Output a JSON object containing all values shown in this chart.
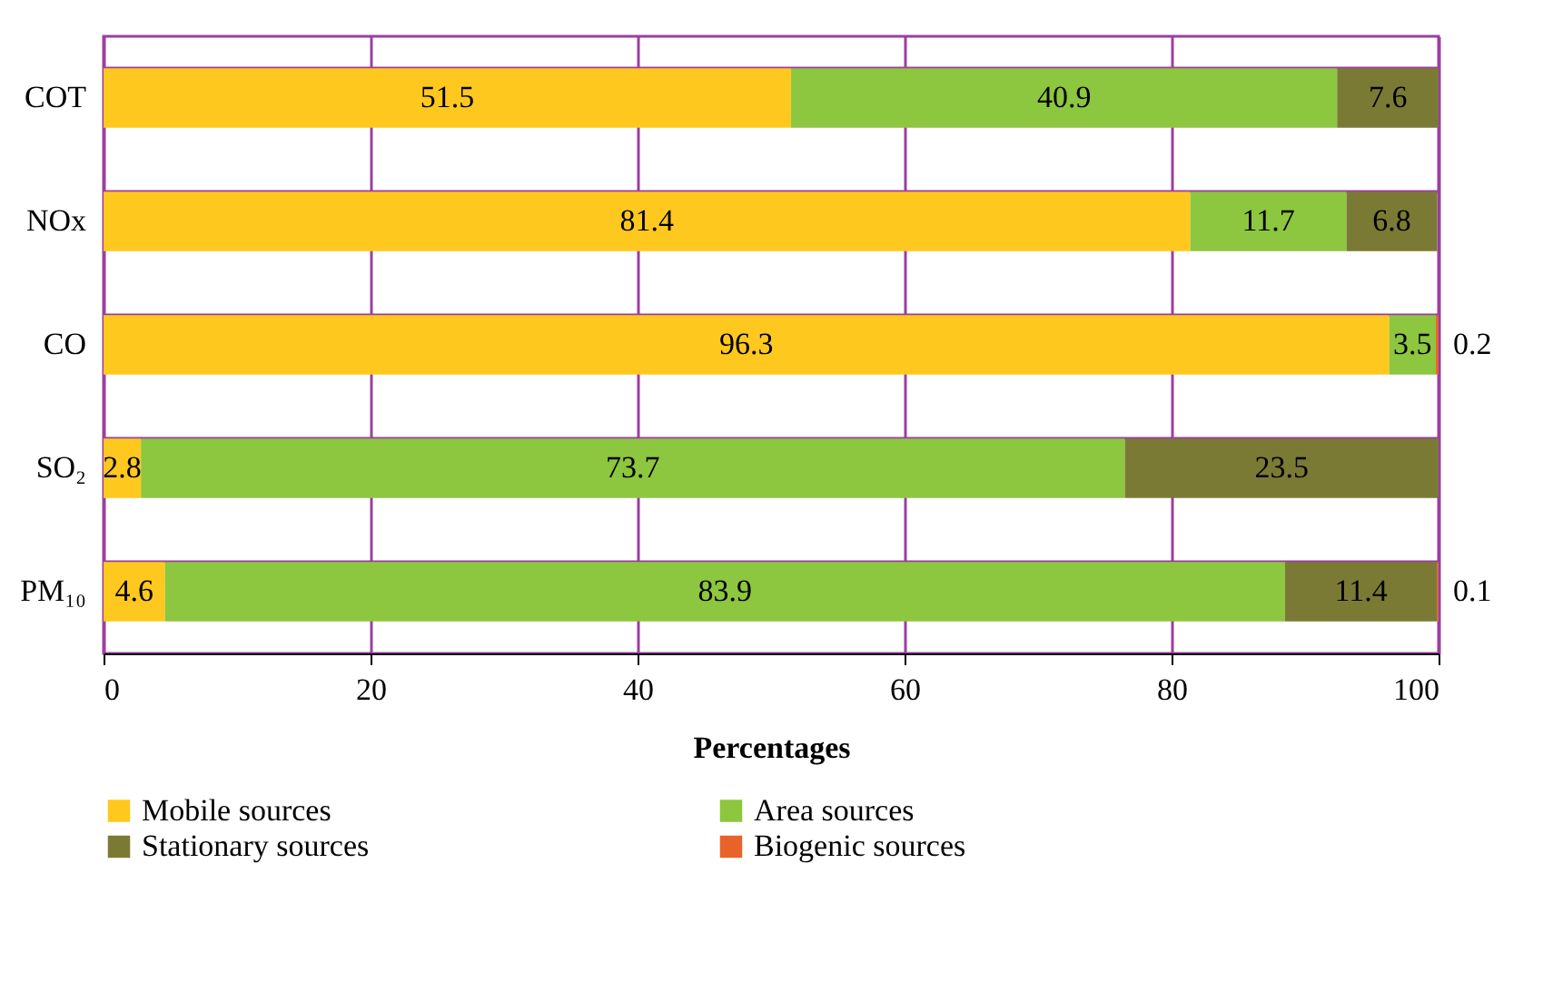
{
  "chart_data": {
    "type": "bar",
    "orientation": "horizontal",
    "stacked": true,
    "xlabel": "Percentages",
    "categories": [
      "COT",
      "NOx",
      "CO",
      "SO₂",
      "PM₁₀"
    ],
    "series": [
      {
        "name": "Mobile sources",
        "color": "#ffc81e",
        "values": [
          51.5,
          81.4,
          96.3,
          2.8,
          4.6
        ],
        "value_labels": [
          "51.5",
          "81.4",
          "96.3",
          "2.8",
          "4.6"
        ]
      },
      {
        "name": "Area sources",
        "color": "#8dc63f",
        "values": [
          40.9,
          11.7,
          3.5,
          73.7,
          83.9
        ],
        "value_labels": [
          "40.9",
          "11.7",
          "3.5",
          "73.7",
          "83.9"
        ]
      },
      {
        "name": "Stationary sources",
        "color": "#7b7a35",
        "values": [
          7.6,
          6.8,
          null,
          23.5,
          11.4
        ],
        "value_labels": [
          "7.6",
          "6.8",
          null,
          "23.5",
          "11.4"
        ]
      },
      {
        "name": "Biogenic sources",
        "color": "#e8632a",
        "values": [
          null,
          null,
          0.2,
          null,
          0.1
        ],
        "value_labels": [
          null,
          null,
          "0.2",
          null,
          "0.1"
        ]
      }
    ],
    "xlim": [
      0,
      100
    ],
    "xticks": [
      0,
      20,
      40,
      60,
      80,
      100
    ],
    "grid": true,
    "legend": "bottom"
  }
}
